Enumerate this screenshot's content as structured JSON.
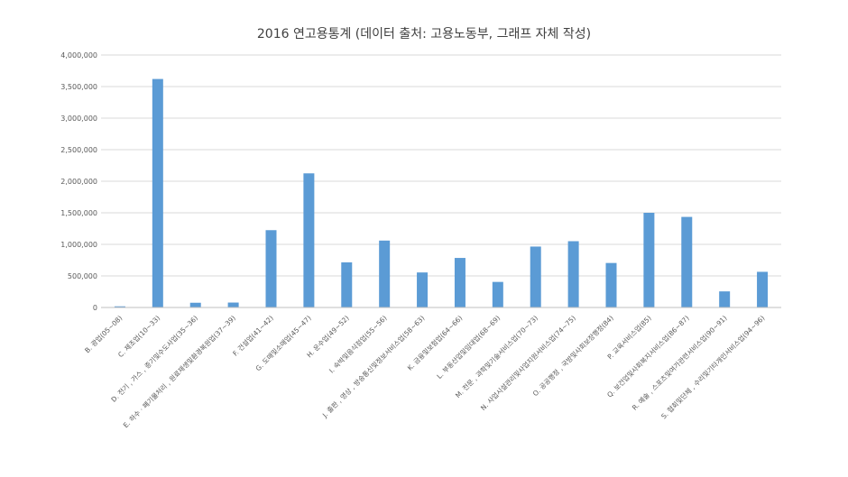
{
  "chart_data": {
    "type": "bar",
    "title": "2016 연고용통계 (데이터 출처: 고용노동부, 그래프 자체 작성)",
    "xlabel": "",
    "ylabel": "",
    "ylim": [
      0,
      4000000
    ],
    "yticks": [
      0,
      500000,
      1000000,
      1500000,
      2000000,
      2500000,
      3000000,
      3500000,
      4000000
    ],
    "ytick_labels": [
      "0",
      "500,000",
      "1,000,000",
      "1,500,000",
      "2,000,000",
      "2,500,000",
      "3,000,000",
      "3,500,000",
      "4,000,000"
    ],
    "grid": true,
    "legend": "none",
    "bar_color": "#5b9bd5",
    "categories": [
      "B. 광업(05~08)",
      "C. 제조업(10~33)",
      "D. 전기 , 가스 , 증기및수도사업(35~36)",
      "E. 하수 · 폐기물처리 , 원료재생및환경복원업(37~39)",
      "F. 건설업(41~42)",
      "G. 도매및소매업(45~47)",
      "H. 운수업(49~52)",
      "I. 숙박및음식점업(55~56)",
      "J. 출판 , 영상 , 방송통신및정보서비스업(58~63)",
      "K. 금융및보험업(64~66)",
      "L. 부동산업및임대업(68~69)",
      "M. 전문 , 과학및기술서비스업(70~73)",
      "N. 사업시설관리및사업지원서비스업(74~75)",
      "O. 공공행정 , 국방및사회보장행정(84)",
      "P. 교육서비스업(85)",
      "Q. 보건업및사회복지서비스업(86~87)",
      "R. 예술 , 스포츠및여가관련서비스업(90~91)",
      "S. 협회및단체 , 수리및기타개인서비스업(94~96)"
    ],
    "values": [
      18000,
      3620000,
      75000,
      78000,
      1225000,
      2125000,
      715000,
      1060000,
      555000,
      785000,
      405000,
      965000,
      1050000,
      705000,
      1500000,
      1435000,
      255000,
      565000
    ]
  }
}
